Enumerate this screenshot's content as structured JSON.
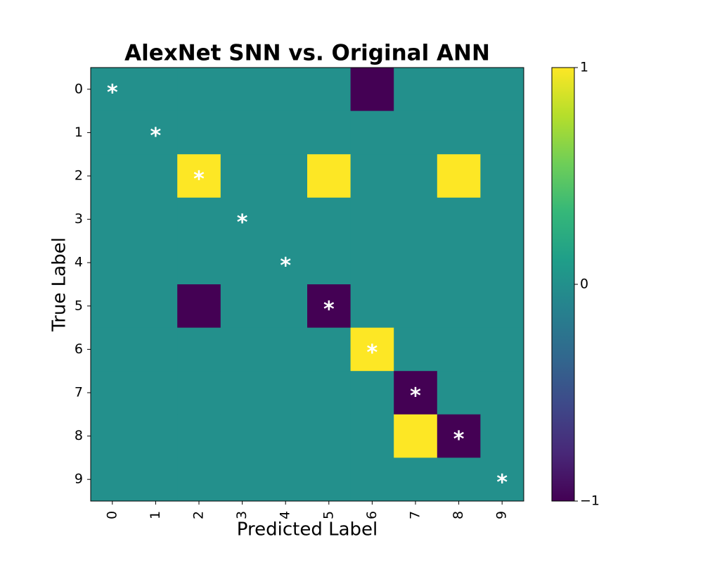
{
  "chart_data": {
    "type": "heatmap",
    "title": "AlexNet SNN vs. Original ANN",
    "x_label": "Predicted Label",
    "y_label": "True Label",
    "x_categories": [
      "0",
      "1",
      "2",
      "3",
      "4",
      "5",
      "6",
      "7",
      "8",
      "9"
    ],
    "y_categories": [
      "0",
      "1",
      "2",
      "3",
      "4",
      "5",
      "6",
      "7",
      "8",
      "9"
    ],
    "values": [
      [
        0,
        0,
        0,
        0,
        0,
        0,
        -1,
        0,
        0,
        0
      ],
      [
        0,
        0,
        0,
        0,
        0,
        0,
        0,
        0,
        0,
        0
      ],
      [
        0,
        0,
        1,
        0,
        0,
        1,
        0,
        0,
        1,
        0
      ],
      [
        0,
        0,
        0,
        0,
        0,
        0,
        0,
        0,
        0,
        0
      ],
      [
        0,
        0,
        0,
        0,
        0,
        0,
        0,
        0,
        0,
        0
      ],
      [
        0,
        0,
        -1,
        0,
        0,
        -1,
        0,
        0,
        0,
        0
      ],
      [
        0,
        0,
        0,
        0,
        0,
        0,
        1,
        0,
        0,
        0
      ],
      [
        0,
        0,
        0,
        0,
        0,
        0,
        0,
        -1,
        0,
        0
      ],
      [
        0,
        0,
        0,
        0,
        0,
        0,
        0,
        1,
        -1,
        0
      ],
      [
        0,
        0,
        0,
        0,
        0,
        0,
        0,
        0,
        0,
        0
      ]
    ],
    "cell_labels": [
      [
        "*",
        null,
        null,
        null,
        null,
        null,
        null,
        null,
        null,
        null
      ],
      [
        null,
        "*",
        null,
        null,
        null,
        null,
        null,
        null,
        null,
        null
      ],
      [
        null,
        null,
        "*",
        null,
        null,
        null,
        null,
        null,
        null,
        null
      ],
      [
        null,
        null,
        null,
        "*",
        null,
        null,
        null,
        null,
        null,
        null
      ],
      [
        null,
        null,
        null,
        null,
        "*",
        null,
        null,
        null,
        null,
        null
      ],
      [
        null,
        null,
        null,
        null,
        null,
        "*",
        null,
        null,
        null,
        null
      ],
      [
        null,
        null,
        null,
        null,
        null,
        null,
        "*",
        null,
        null,
        null
      ],
      [
        null,
        null,
        null,
        null,
        null,
        null,
        null,
        "*",
        null,
        null
      ],
      [
        null,
        null,
        null,
        null,
        null,
        null,
        null,
        null,
        "*",
        null
      ],
      [
        null,
        null,
        null,
        null,
        null,
        null,
        null,
        null,
        null,
        "*"
      ]
    ],
    "zlim": [
      -1,
      1
    ],
    "zticks": [
      {
        "value": -1,
        "label": "−1"
      },
      0,
      1
    ],
    "colormap": [
      "#440154",
      "#482878",
      "#3e4989",
      "#31688e",
      "#26828e",
      "#1f9e89",
      "#35b779",
      "#6ece58",
      "#b5de2b",
      "#fde725"
    ]
  }
}
